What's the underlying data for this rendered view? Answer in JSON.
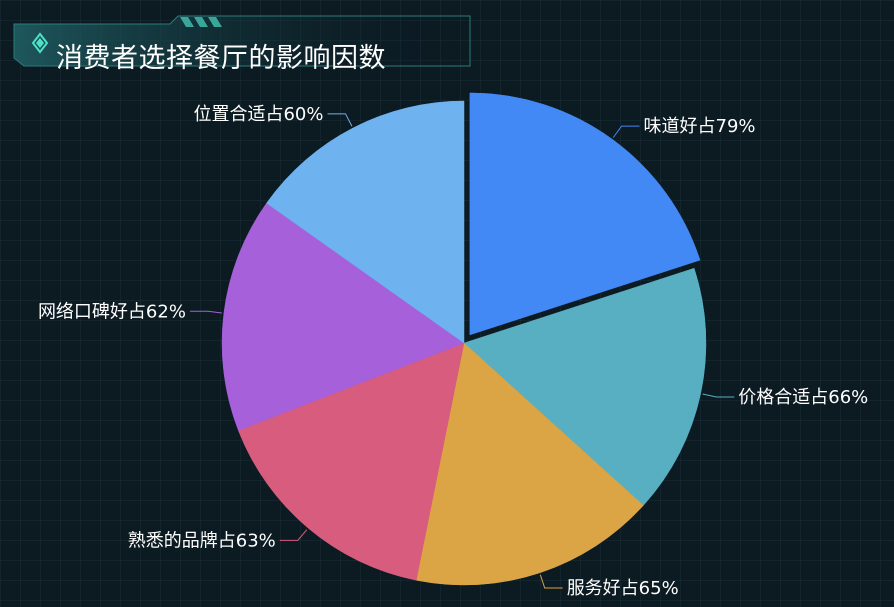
{
  "header": {
    "title": "消费者选择餐厅的影响因数"
  },
  "chart_data": {
    "type": "pie",
    "title": "消费者选择餐厅的影响因数",
    "slices": [
      {
        "label": "味道好占79%",
        "value": 79,
        "color": "#4289f5",
        "exploded": true
      },
      {
        "label": "价格合适占66%",
        "value": 66,
        "color": "#57afc1"
      },
      {
        "label": "服务好占65%",
        "value": 65,
        "color": "#dba444"
      },
      {
        "label": "熟悉的品牌占63%",
        "value": 63,
        "color": "#d85c7e"
      },
      {
        "label": "网络口碑好占62%",
        "value": 62,
        "color": "#a660da"
      },
      {
        "label": "位置合适占60%",
        "value": 60,
        "color": "#6eb2ef"
      }
    ]
  }
}
